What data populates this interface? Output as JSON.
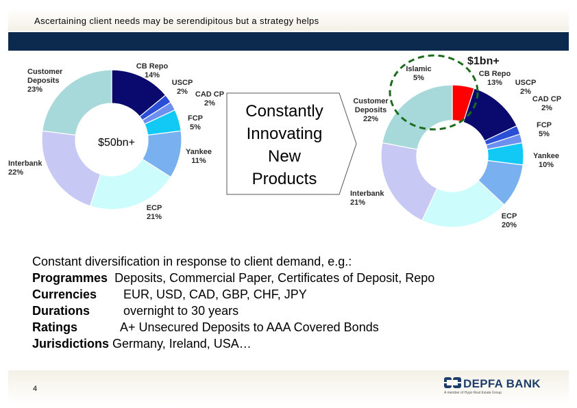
{
  "header": {
    "title": "Ascertaining client needs may be serendipitous but a strategy helps"
  },
  "chart_data": [
    {
      "type": "pie",
      "center_label": "$50bn+",
      "slices": [
        {
          "name": "CB Repo",
          "pct_label": "14%",
          "value": 14,
          "color": "#0a0a6e"
        },
        {
          "name": "USCP",
          "pct_label": "2%",
          "value": 2,
          "color": "#2a4fd6"
        },
        {
          "name": "CAD CP",
          "pct_label": "2%",
          "value": 2,
          "color": "#6d90f0"
        },
        {
          "name": "FCP",
          "pct_label": "5%",
          "value": 5,
          "color": "#12c8f5"
        },
        {
          "name": "Yankee",
          "pct_label": "11%",
          "value": 11,
          "color": "#79b1f0"
        },
        {
          "name": "ECP",
          "pct_label": "21%",
          "value": 21,
          "color": "#cdfcfc"
        },
        {
          "name": "Interbank",
          "pct_label": "22%",
          "value": 22,
          "color": "#c8c8f5"
        },
        {
          "name": "Customer Deposits",
          "pct_label": "23%",
          "value": 23,
          "color": "#a8d9da"
        }
      ]
    },
    {
      "type": "pie",
      "highlight_label": "$1bn+",
      "slices": [
        {
          "name": "Islamic",
          "pct_label": "5%",
          "value": 5,
          "color": "#ff0000"
        },
        {
          "name": "CB Repo",
          "pct_label": "13%",
          "value": 13,
          "color": "#0a0a6e"
        },
        {
          "name": "USCP",
          "pct_label": "2%",
          "value": 2,
          "color": "#2a4fd6"
        },
        {
          "name": "CAD CP",
          "pct_label": "2%",
          "value": 2,
          "color": "#6d90f0"
        },
        {
          "name": "FCP",
          "pct_label": "5%",
          "value": 5,
          "color": "#12c8f5"
        },
        {
          "name": "Yankee",
          "pct_label": "10%",
          "value": 10,
          "color": "#79b1f0"
        },
        {
          "name": "ECP",
          "pct_label": "20%",
          "value": 20,
          "color": "#cdfcfc"
        },
        {
          "name": "Interbank",
          "pct_label": "21%",
          "value": 21,
          "color": "#c8c8f5"
        },
        {
          "name": "Customer Deposits",
          "pct_label": "22%",
          "value": 22,
          "color": "#a8d9da"
        }
      ]
    }
  ],
  "arrow_box": {
    "lines": [
      "Constantly",
      "Innovating",
      "New",
      "Products"
    ]
  },
  "body": {
    "intro": "Constant diversification in response to client demand, e.g.:",
    "rows": [
      {
        "key": "Programmes",
        "value": "Deposits, Commercial Paper, Certificates of Deposit, Repo"
      },
      {
        "key": "Currencies",
        "value": "EUR, USD, CAD, GBP, CHF, JPY"
      },
      {
        "key": "Durations",
        "value": "overnight to 30 years"
      },
      {
        "key": "Ratings",
        "value": "A+ Unsecured Deposits to AAA Covered Bonds"
      },
      {
        "key": "Jurisdictions",
        "value": "Germany, Ireland, USA…"
      }
    ]
  },
  "footer": {
    "page_number": "4",
    "logo_name": "DEPFA BANK",
    "logo_tagline": "A member of Hypo Real Estate Group"
  }
}
